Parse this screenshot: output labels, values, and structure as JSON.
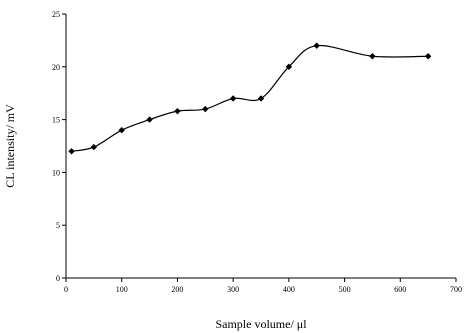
{
  "chart_data": {
    "type": "line",
    "xlabel": "Sample volume/ μl",
    "ylabel": "CL intensity/ mV",
    "xlim": [
      0,
      700
    ],
    "ylim": [
      0,
      25
    ],
    "xticks": [
      0,
      100,
      200,
      300,
      400,
      500,
      600,
      700
    ],
    "yticks": [
      0,
      5,
      10,
      15,
      20,
      25
    ],
    "grid": false,
    "smooth": true,
    "marker": "diamond",
    "series": [
      {
        "x": [
          10,
          50,
          100,
          150,
          200,
          250,
          300,
          350,
          400,
          450,
          550,
          650
        ],
        "y": [
          12,
          12.4,
          14,
          15,
          15.8,
          16,
          17,
          17,
          20,
          22,
          21,
          21
        ]
      }
    ]
  }
}
